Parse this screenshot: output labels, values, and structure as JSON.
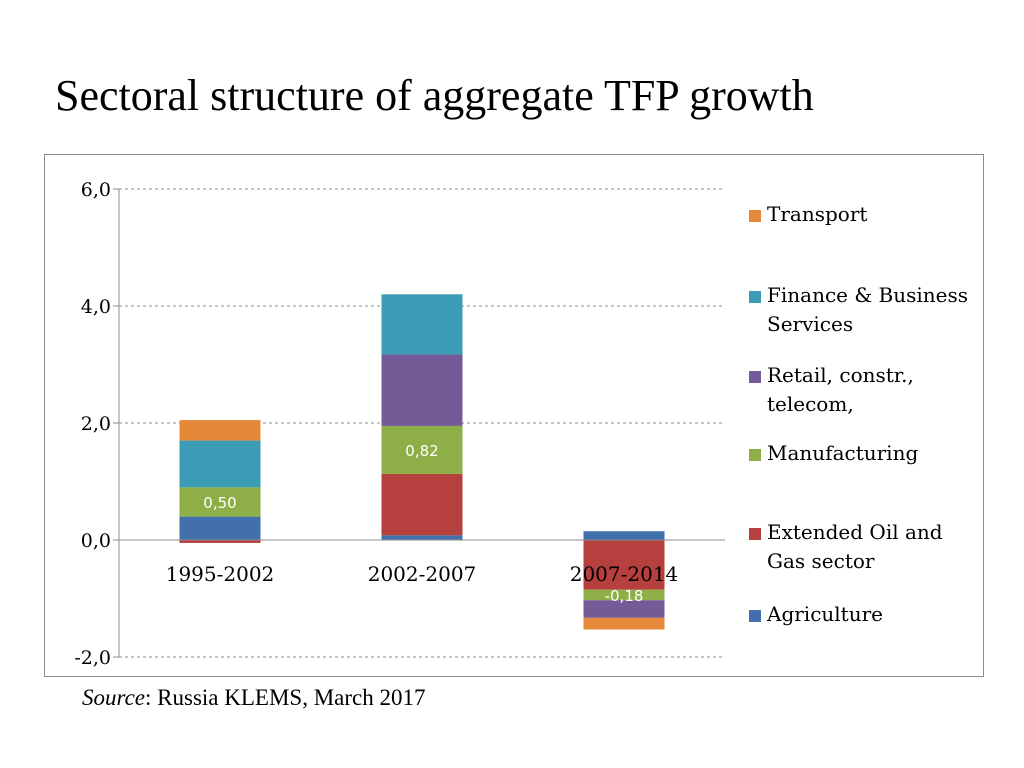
{
  "slide": {
    "title": "Sectoral structure of aggregate TFP growth",
    "source_prefix": "Source",
    "source_rest": ": Russia KLEMS, March 2017"
  },
  "chart_data": {
    "type": "bar",
    "stacked": true,
    "categories": [
      "1995-2002",
      "2002-2007",
      "2007-2014"
    ],
    "ylim": [
      -2.0,
      6.0
    ],
    "yticks": [
      -2.0,
      0.0,
      2.0,
      4.0,
      6.0
    ],
    "ytick_labels": [
      "-2,0",
      "0,0",
      "2,0",
      "4,0",
      "6,0"
    ],
    "grid": true,
    "legend_position": "right",
    "series": [
      {
        "name": "Agriculture",
        "color": "#4170ad",
        "values": [
          0.4,
          0.08,
          0.15
        ]
      },
      {
        "name": "Extended Oil and\nGas sector",
        "color": "#b5403e",
        "values": [
          -0.05,
          1.05,
          -0.85
        ]
      },
      {
        "name": "Manufacturing",
        "color": "#8eaf48",
        "values": [
          0.5,
          0.82,
          -0.18
        ]
      },
      {
        "name": "Retail, constr.,\ntelecom,",
        "color": "#745b97",
        "values": [
          0.0,
          1.22,
          -0.3
        ]
      },
      {
        "name": "Finance & Business\nServices",
        "color": "#3b9db5",
        "values": [
          0.8,
          1.03,
          0.0
        ]
      },
      {
        "name": "Transport",
        "color": "#e5883a",
        "values": [
          0.35,
          0.0,
          -0.2
        ]
      }
    ],
    "data_labels": [
      {
        "category": 0,
        "series": 2,
        "text": "0,50"
      },
      {
        "category": 1,
        "series": 2,
        "text": "0,82"
      },
      {
        "category": 2,
        "series": 2,
        "text": "-0,18"
      }
    ]
  }
}
